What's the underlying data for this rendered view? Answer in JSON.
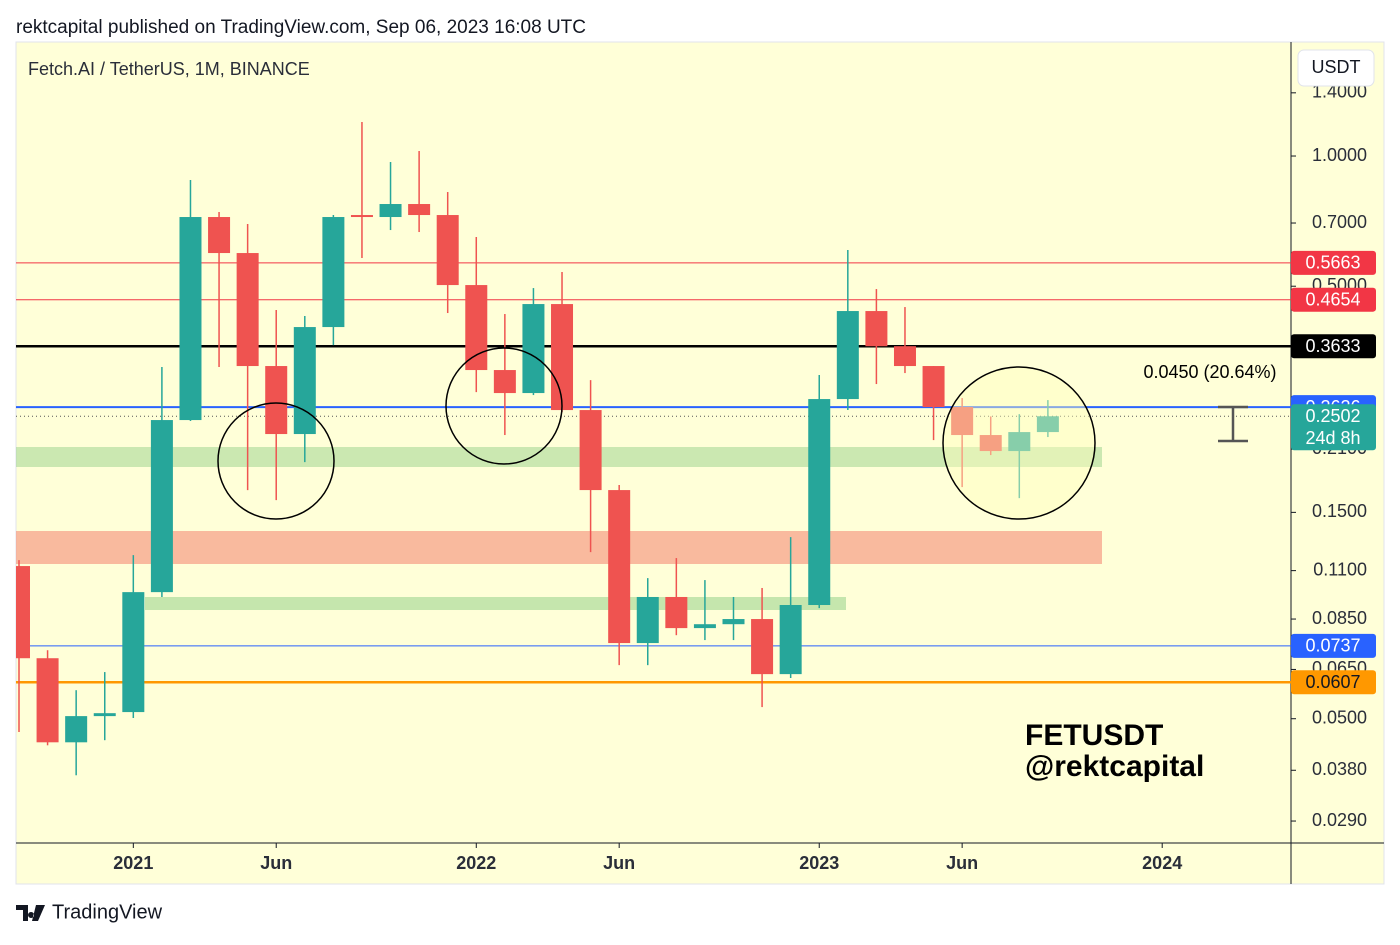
{
  "header": "rektcapital published on TradingView.com, Sep 06, 2023 16:08 UTC",
  "footer": "TradingView",
  "chart_data": {
    "type": "candlestick",
    "title": "Fetch.AI / TetherUS, 1M, BINANCE",
    "currency": "USDT",
    "watermark": [
      "FETUSDT",
      "@rektcapital"
    ],
    "log_scale": true,
    "up_color": "#26a69a",
    "down_color": "#ef5350",
    "x": [
      "2020-09",
      "2020-10",
      "2020-11",
      "2020-12",
      "2021-01",
      "2021-02",
      "2021-03",
      "2021-04",
      "2021-05",
      "2021-06",
      "2021-07",
      "2021-08",
      "2021-09",
      "2021-10",
      "2021-11",
      "2021-12",
      "2022-01",
      "2022-02",
      "2022-03",
      "2022-04",
      "2022-05",
      "2022-06",
      "2022-07",
      "2022-08",
      "2022-09",
      "2022-10",
      "2022-11",
      "2022-12",
      "2023-01",
      "2023-02",
      "2023-03",
      "2023-04",
      "2023-05",
      "2023-06",
      "2023-07",
      "2023-08",
      "2023-09"
    ],
    "open": [
      0.1127,
      0.069,
      0.0441,
      0.0507,
      0.0518,
      0.0981,
      0.2452,
      0.7227,
      0.5966,
      0.3269,
      0.2276,
      0.4023,
      0.7304,
      0.7227,
      0.7745,
      0.7304,
      0.5031,
      0.32,
      0.2831,
      0.4547,
      0.2586,
      0.1689,
      0.0748,
      0.0956,
      0.081,
      0.0827,
      0.085,
      0.0634,
      0.0916,
      0.2742,
      0.4381,
      0.3633,
      0.3269,
      0.2628,
      0.2264,
      0.2079,
      0.23
    ],
    "high": [
      0.1163,
      0.072,
      0.0582,
      0.0641,
      0.1195,
      0.3252,
      0.88,
      0.7421,
      0.6962,
      0.4404,
      0.4266,
      0.7304,
      1.1985,
      0.9686,
      1.027,
      0.8256,
      0.6497,
      0.4312,
      0.4951,
      0.5392,
      0.3033,
      0.1735,
      0.1057,
      0.1176,
      0.1046,
      0.0956,
      0.1003,
      0.1315,
      0.3116,
      0.6062,
      0.4925,
      0.4475,
      0.3269,
      0.2757,
      0.25,
      0.253,
      0.2727
    ],
    "low": [
      0.0466,
      0.0434,
      0.037,
      0.0446,
      0.0502,
      0.0956,
      0.2439,
      0.3252,
      0.1689,
      0.1601,
      0.196,
      0.3655,
      0.581,
      0.6743,
      0.6672,
      0.4335,
      0.2846,
      0.2264,
      0.2801,
      0.2558,
      0.1214,
      0.0665,
      0.0665,
      0.078,
      0.076,
      0.076,
      0.0532,
      0.0621,
      0.0901,
      0.2586,
      0.297,
      0.3149,
      0.2204,
      0.1716,
      0.2035,
      0.1618,
      0.224
    ],
    "close": [
      0.069,
      0.0441,
      0.0507,
      0.0515,
      0.0981,
      0.2452,
      0.7227,
      0.5966,
      0.3269,
      0.2276,
      0.4023,
      0.7227,
      0.7227,
      0.7745,
      0.7304,
      0.5031,
      0.32,
      0.2831,
      0.4547,
      0.2586,
      0.1689,
      0.0748,
      0.0956,
      0.081,
      0.0827,
      0.085,
      0.0634,
      0.0916,
      0.2742,
      0.4381,
      0.3633,
      0.3269,
      0.2628,
      0.2264,
      0.2079,
      0.23,
      0.2502
    ],
    "ylim": [
      0.0258,
      1.835
    ],
    "yticks": [
      {
        "value": 1.4,
        "label": "1.4000"
      },
      {
        "value": 1.0,
        "label": "1.0000"
      },
      {
        "value": 0.7,
        "label": "0.7000"
      },
      {
        "value": 0.5,
        "label": "0.5000"
      },
      {
        "value": 0.21,
        "label": "0.2100"
      },
      {
        "value": 0.15,
        "label": "0.1500"
      },
      {
        "value": 0.11,
        "label": "0.1100"
      },
      {
        "value": 0.085,
        "label": "0.0850"
      },
      {
        "value": 0.065,
        "label": "0.0650"
      },
      {
        "value": 0.05,
        "label": "0.0500"
      },
      {
        "value": 0.038,
        "label": "0.0380"
      },
      {
        "value": 0.029,
        "label": "0.0290"
      }
    ],
    "xticks": [
      {
        "value": "2021-01",
        "label": "2021"
      },
      {
        "value": "2021-06",
        "label": "Jun"
      },
      {
        "value": "2022-01",
        "label": "2022"
      },
      {
        "value": "2022-06",
        "label": "Jun"
      },
      {
        "value": "2023-01",
        "label": "2023"
      },
      {
        "value": "2023-06",
        "label": "Jun"
      },
      {
        "value": "2024-01",
        "label": "2024"
      }
    ],
    "levels": [
      {
        "value": 0.5663,
        "color": "#f23645",
        "width": 1
      },
      {
        "value": 0.4654,
        "color": "#f23645",
        "width": 1
      },
      {
        "value": 0.3633,
        "color": "#000000",
        "width": 2.5
      },
      {
        "value": 0.2626,
        "color": "#2962ff",
        "width": 2
      },
      {
        "value": 0.0737,
        "color": "#2962ff",
        "width": 1
      },
      {
        "value": 0.0607,
        "color": "#ff9800",
        "width": 2.5
      }
    ],
    "last_price": 0.2502,
    "countdown": "24d 8h",
    "measure_label": "0.0450 (20.64%)"
  }
}
